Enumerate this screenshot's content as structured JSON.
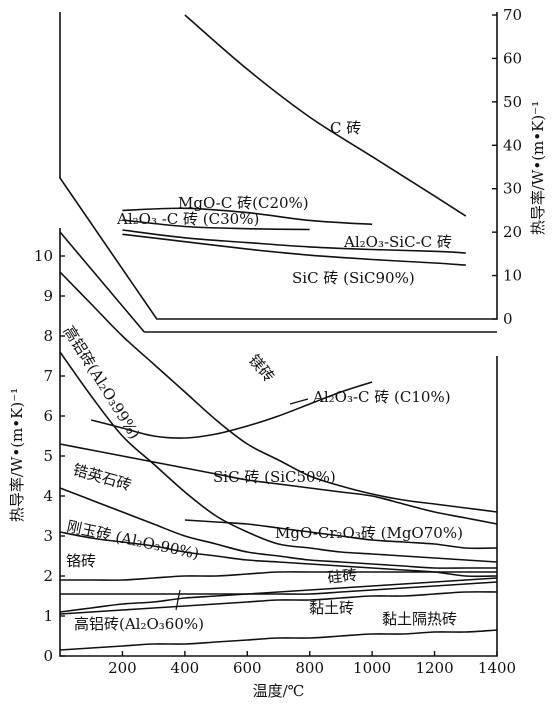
{
  "chart_data": [
    {
      "type": "line",
      "panel": "upper",
      "x": [
        0,
        200,
        400,
        600,
        800,
        1000,
        1200,
        1300
      ],
      "ylim": [
        0,
        70
      ],
      "ylabel": "热导率/W•(m•K)⁻¹",
      "yticks": [
        "0",
        "10",
        "20",
        "30",
        "40",
        "50",
        "60",
        "70"
      ],
      "series": [
        {
          "name": "C 砖",
          "values": [
            null,
            null,
            70,
            57.5,
            46.5,
            37.4,
            28.3,
            23.7
          ]
        },
        {
          "name": "MgO-C 砖(C20%)",
          "values": [
            null,
            25,
            25.5,
            24.5,
            22.7,
            21.8,
            null,
            null
          ]
        },
        {
          "name": "Al₂O₃ -C 砖 (C30%)",
          "values": [
            null,
            22.8,
            21.3,
            20.8,
            20.6,
            null,
            null,
            null
          ]
        },
        {
          "name": "Al₂O₃-SiC-C 砖",
          "values": [
            null,
            20.5,
            18.7,
            17.6,
            16.6,
            16,
            15.6,
            15.2
          ]
        },
        {
          "name": "SiC 砖 (SiC90%)",
          "values": [
            null,
            19.5,
            17.8,
            16.1,
            14.7,
            13.7,
            12.9,
            12.4
          ]
        }
      ]
    },
    {
      "type": "line",
      "panel": "lower",
      "x": [
        0,
        100,
        200,
        300,
        400,
        500,
        600,
        700,
        800,
        900,
        1000,
        1100,
        1200,
        1300,
        1400
      ],
      "xlim": [
        0,
        1400
      ],
      "ylim": [
        0,
        10
      ],
      "xlabel": "温度/℃",
      "ylabel": "热导率/W•(m•K)⁻¹",
      "xticks": [
        "200",
        "400",
        "600",
        "800",
        "1000",
        "1200",
        "1400"
      ],
      "yticks": [
        "0",
        "1",
        "2",
        "3",
        "4",
        "5",
        "6",
        "7",
        "8",
        "9",
        "10"
      ],
      "series": [
        {
          "name": "镁砖",
          "values": [
            9.6,
            8.8,
            8.0,
            7.3,
            6.6,
            5.9,
            5.3,
            4.9,
            4.5,
            4.25,
            4.05,
            3.9,
            3.8,
            3.7,
            3.6
          ]
        },
        {
          "name": "高铝砖(Al₂O₃99%)",
          "values": [
            7.6,
            6.5,
            5.5,
            4.8,
            4.1,
            3.5,
            3.1,
            2.8,
            2.7,
            2.6,
            2.55,
            2.5,
            2.45,
            2.4,
            2.35
          ]
        },
        {
          "name": "Al₂O₃-C 砖 (C10%)",
          "values": [
            null,
            5.9,
            5.7,
            5.5,
            5.45,
            5.55,
            5.75,
            6.0,
            6.3,
            6.6,
            6.85,
            null,
            null,
            null,
            null
          ]
        },
        {
          "name": "SiC 砖 (SiC50%)",
          "values": [
            5.3,
            5.15,
            5.0,
            4.85,
            4.7,
            4.55,
            4.4,
            4.3,
            4.2,
            4.1,
            4.0,
            3.8,
            3.6,
            3.45,
            3.3
          ]
        },
        {
          "name": "锆英石砖",
          "values": [
            4.2,
            3.9,
            3.6,
            3.3,
            3.0,
            2.8,
            2.6,
            2.5,
            2.4,
            2.35,
            2.3,
            2.25,
            2.2,
            2.2,
            2.2
          ]
        },
        {
          "name": "MgO-Cr₂O₃砖 (MgO70%)",
          "values": [
            null,
            null,
            null,
            null,
            3.4,
            3.35,
            3.3,
            3.2,
            3.1,
            3.0,
            2.9,
            2.85,
            2.8,
            2.7,
            2.7
          ]
        },
        {
          "name": "刚玉砖 (Al₂O₃90%)",
          "values": [
            3.1,
            2.95,
            2.85,
            2.75,
            2.6,
            2.5,
            2.4,
            2.35,
            2.3,
            2.25,
            2.2,
            2.15,
            2.1,
            2.0,
            2.0
          ]
        },
        {
          "name": "铬砖",
          "values": [
            1.9,
            1.9,
            1.9,
            1.95,
            2.0,
            2.0,
            2.05,
            2.1,
            2.1,
            2.1,
            2.1,
            2.1,
            2.1,
            2.1,
            2.1
          ]
        },
        {
          "name": "硅砖",
          "values": [
            1.1,
            1.2,
            1.3,
            1.35,
            1.45,
            1.5,
            1.55,
            1.6,
            1.65,
            1.7,
            1.75,
            1.8,
            1.85,
            1.9,
            1.95
          ]
        },
        {
          "name": "黏土砖",
          "values": [
            1.05,
            1.1,
            1.15,
            1.2,
            1.25,
            1.3,
            1.35,
            1.4,
            1.4,
            1.45,
            1.5,
            1.5,
            1.55,
            1.6,
            1.6
          ]
        },
        {
          "name": "高铝砖(Al₂O₃60%)",
          "values": [
            1.55,
            1.55,
            1.55,
            1.55,
            1.55,
            1.55,
            1.55,
            1.55,
            1.55,
            1.6,
            1.65,
            1.7,
            1.75,
            1.8,
            1.85
          ]
        },
        {
          "name": "黏土隔热砖",
          "values": [
            0.15,
            0.2,
            0.25,
            0.3,
            0.3,
            0.35,
            0.4,
            0.45,
            0.45,
            0.5,
            0.55,
            0.55,
            0.6,
            0.6,
            0.65
          ]
        }
      ]
    }
  ]
}
